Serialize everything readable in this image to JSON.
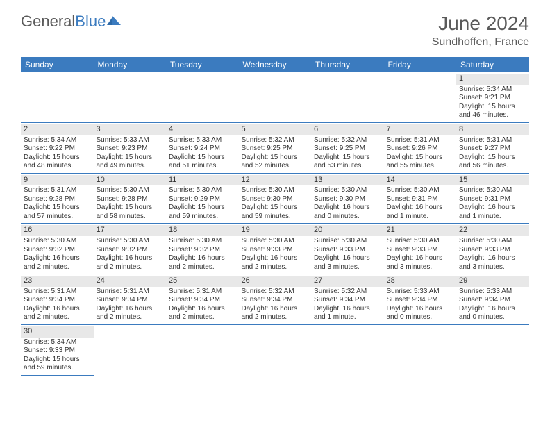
{
  "colors": {
    "header_bg": "#3b7bbf",
    "header_text": "#ffffff",
    "daynum_bg": "#e8e8e8",
    "border": "#3b7bbf",
    "text": "#333333",
    "title": "#5a5a5a"
  },
  "logo": {
    "text1": "General",
    "text2": "Blue"
  },
  "title": "June 2024",
  "location": "Sundhoffen, France",
  "day_headers": [
    "Sunday",
    "Monday",
    "Tuesday",
    "Wednesday",
    "Thursday",
    "Friday",
    "Saturday"
  ],
  "weeks": [
    [
      {
        "n": "",
        "sr": "",
        "ss": "",
        "dl": ""
      },
      {
        "n": "",
        "sr": "",
        "ss": "",
        "dl": ""
      },
      {
        "n": "",
        "sr": "",
        "ss": "",
        "dl": ""
      },
      {
        "n": "",
        "sr": "",
        "ss": "",
        "dl": ""
      },
      {
        "n": "",
        "sr": "",
        "ss": "",
        "dl": ""
      },
      {
        "n": "",
        "sr": "",
        "ss": "",
        "dl": ""
      },
      {
        "n": "1",
        "sr": "Sunrise: 5:34 AM",
        "ss": "Sunset: 9:21 PM",
        "dl": "Daylight: 15 hours and 46 minutes."
      }
    ],
    [
      {
        "n": "2",
        "sr": "Sunrise: 5:34 AM",
        "ss": "Sunset: 9:22 PM",
        "dl": "Daylight: 15 hours and 48 minutes."
      },
      {
        "n": "3",
        "sr": "Sunrise: 5:33 AM",
        "ss": "Sunset: 9:23 PM",
        "dl": "Daylight: 15 hours and 49 minutes."
      },
      {
        "n": "4",
        "sr": "Sunrise: 5:33 AM",
        "ss": "Sunset: 9:24 PM",
        "dl": "Daylight: 15 hours and 51 minutes."
      },
      {
        "n": "5",
        "sr": "Sunrise: 5:32 AM",
        "ss": "Sunset: 9:25 PM",
        "dl": "Daylight: 15 hours and 52 minutes."
      },
      {
        "n": "6",
        "sr": "Sunrise: 5:32 AM",
        "ss": "Sunset: 9:25 PM",
        "dl": "Daylight: 15 hours and 53 minutes."
      },
      {
        "n": "7",
        "sr": "Sunrise: 5:31 AM",
        "ss": "Sunset: 9:26 PM",
        "dl": "Daylight: 15 hours and 55 minutes."
      },
      {
        "n": "8",
        "sr": "Sunrise: 5:31 AM",
        "ss": "Sunset: 9:27 PM",
        "dl": "Daylight: 15 hours and 56 minutes."
      }
    ],
    [
      {
        "n": "9",
        "sr": "Sunrise: 5:31 AM",
        "ss": "Sunset: 9:28 PM",
        "dl": "Daylight: 15 hours and 57 minutes."
      },
      {
        "n": "10",
        "sr": "Sunrise: 5:30 AM",
        "ss": "Sunset: 9:28 PM",
        "dl": "Daylight: 15 hours and 58 minutes."
      },
      {
        "n": "11",
        "sr": "Sunrise: 5:30 AM",
        "ss": "Sunset: 9:29 PM",
        "dl": "Daylight: 15 hours and 59 minutes."
      },
      {
        "n": "12",
        "sr": "Sunrise: 5:30 AM",
        "ss": "Sunset: 9:30 PM",
        "dl": "Daylight: 15 hours and 59 minutes."
      },
      {
        "n": "13",
        "sr": "Sunrise: 5:30 AM",
        "ss": "Sunset: 9:30 PM",
        "dl": "Daylight: 16 hours and 0 minutes."
      },
      {
        "n": "14",
        "sr": "Sunrise: 5:30 AM",
        "ss": "Sunset: 9:31 PM",
        "dl": "Daylight: 16 hours and 1 minute."
      },
      {
        "n": "15",
        "sr": "Sunrise: 5:30 AM",
        "ss": "Sunset: 9:31 PM",
        "dl": "Daylight: 16 hours and 1 minute."
      }
    ],
    [
      {
        "n": "16",
        "sr": "Sunrise: 5:30 AM",
        "ss": "Sunset: 9:32 PM",
        "dl": "Daylight: 16 hours and 2 minutes."
      },
      {
        "n": "17",
        "sr": "Sunrise: 5:30 AM",
        "ss": "Sunset: 9:32 PM",
        "dl": "Daylight: 16 hours and 2 minutes."
      },
      {
        "n": "18",
        "sr": "Sunrise: 5:30 AM",
        "ss": "Sunset: 9:32 PM",
        "dl": "Daylight: 16 hours and 2 minutes."
      },
      {
        "n": "19",
        "sr": "Sunrise: 5:30 AM",
        "ss": "Sunset: 9:33 PM",
        "dl": "Daylight: 16 hours and 2 minutes."
      },
      {
        "n": "20",
        "sr": "Sunrise: 5:30 AM",
        "ss": "Sunset: 9:33 PM",
        "dl": "Daylight: 16 hours and 3 minutes."
      },
      {
        "n": "21",
        "sr": "Sunrise: 5:30 AM",
        "ss": "Sunset: 9:33 PM",
        "dl": "Daylight: 16 hours and 3 minutes."
      },
      {
        "n": "22",
        "sr": "Sunrise: 5:30 AM",
        "ss": "Sunset: 9:33 PM",
        "dl": "Daylight: 16 hours and 3 minutes."
      }
    ],
    [
      {
        "n": "23",
        "sr": "Sunrise: 5:31 AM",
        "ss": "Sunset: 9:34 PM",
        "dl": "Daylight: 16 hours and 2 minutes."
      },
      {
        "n": "24",
        "sr": "Sunrise: 5:31 AM",
        "ss": "Sunset: 9:34 PM",
        "dl": "Daylight: 16 hours and 2 minutes."
      },
      {
        "n": "25",
        "sr": "Sunrise: 5:31 AM",
        "ss": "Sunset: 9:34 PM",
        "dl": "Daylight: 16 hours and 2 minutes."
      },
      {
        "n": "26",
        "sr": "Sunrise: 5:32 AM",
        "ss": "Sunset: 9:34 PM",
        "dl": "Daylight: 16 hours and 2 minutes."
      },
      {
        "n": "27",
        "sr": "Sunrise: 5:32 AM",
        "ss": "Sunset: 9:34 PM",
        "dl": "Daylight: 16 hours and 1 minute."
      },
      {
        "n": "28",
        "sr": "Sunrise: 5:33 AM",
        "ss": "Sunset: 9:34 PM",
        "dl": "Daylight: 16 hours and 0 minutes."
      },
      {
        "n": "29",
        "sr": "Sunrise: 5:33 AM",
        "ss": "Sunset: 9:34 PM",
        "dl": "Daylight: 16 hours and 0 minutes."
      }
    ],
    [
      {
        "n": "30",
        "sr": "Sunrise: 5:34 AM",
        "ss": "Sunset: 9:33 PM",
        "dl": "Daylight: 15 hours and 59 minutes."
      },
      {
        "n": "",
        "sr": "",
        "ss": "",
        "dl": ""
      },
      {
        "n": "",
        "sr": "",
        "ss": "",
        "dl": ""
      },
      {
        "n": "",
        "sr": "",
        "ss": "",
        "dl": ""
      },
      {
        "n": "",
        "sr": "",
        "ss": "",
        "dl": ""
      },
      {
        "n": "",
        "sr": "",
        "ss": "",
        "dl": ""
      },
      {
        "n": "",
        "sr": "",
        "ss": "",
        "dl": ""
      }
    ]
  ]
}
